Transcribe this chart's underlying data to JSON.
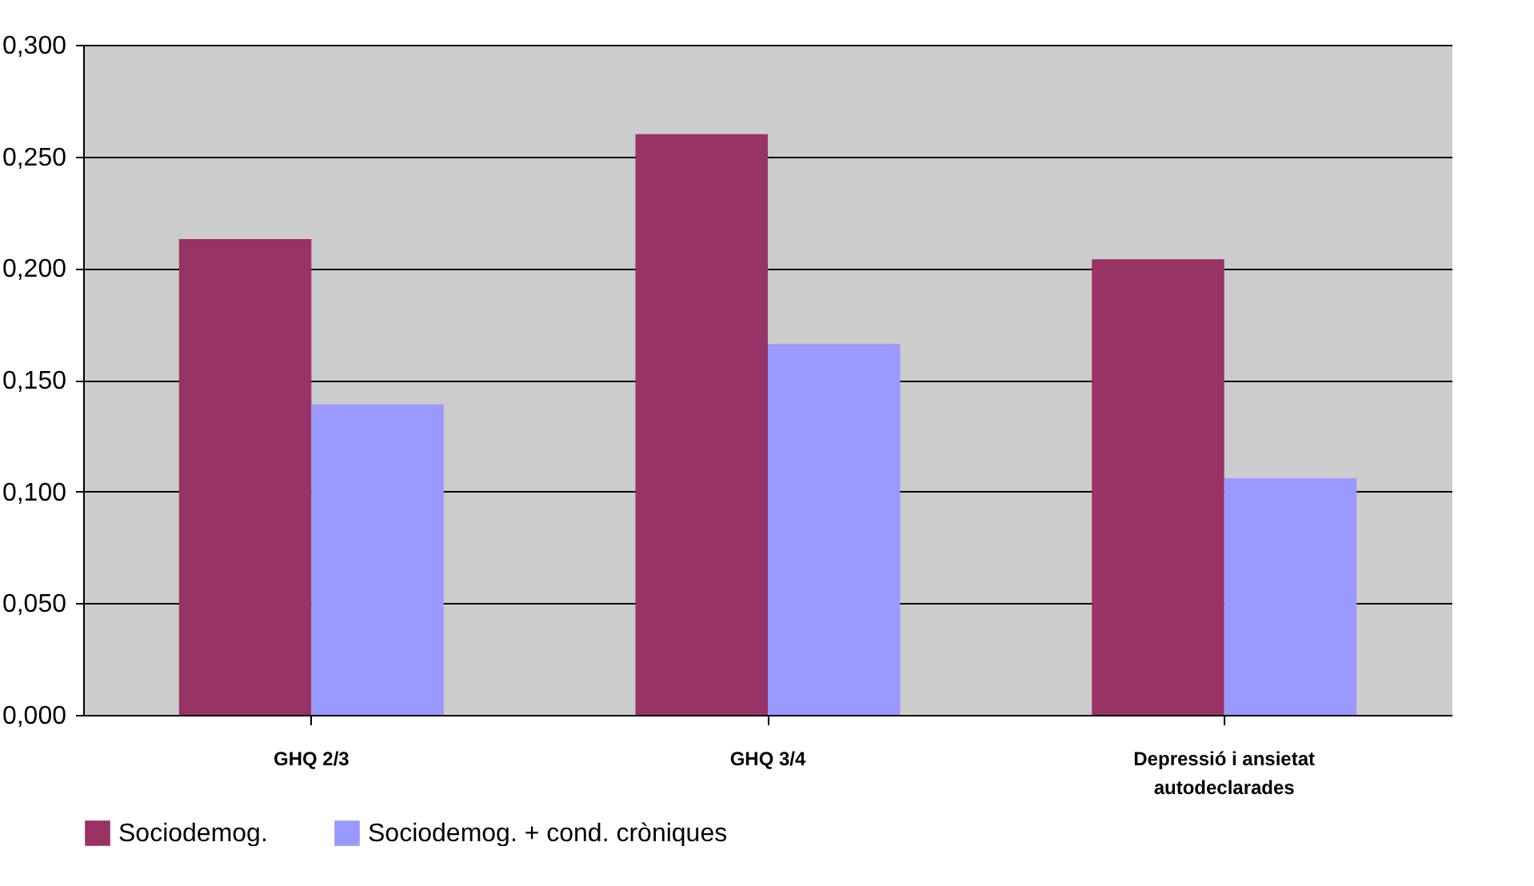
{
  "chart_data": {
    "type": "bar",
    "categories": [
      "GHQ 2/3",
      "GHQ 3/4",
      "Depressió i ansietat autodeclarades"
    ],
    "series": [
      {
        "name": "Sociodemog.",
        "color": "#993366",
        "values": [
          0.213,
          0.26,
          0.204
        ]
      },
      {
        "name": "Sociodemog. + cond. cròniques",
        "color": "#9999ff",
        "values": [
          0.139,
          0.166,
          0.106
        ]
      }
    ],
    "ylim": [
      0,
      0.3
    ],
    "yticks": [
      {
        "value": 0,
        "label": "0,000"
      },
      {
        "value": 0.05,
        "label": "0,050"
      },
      {
        "value": 0.1,
        "label": "0,100"
      },
      {
        "value": 0.15,
        "label": "0,150"
      },
      {
        "value": 0.2,
        "label": "0,200"
      },
      {
        "value": 0.25,
        "label": "0,250"
      },
      {
        "value": 0.3,
        "label": "0,300"
      }
    ],
    "grid": "y",
    "legend": "bottom"
  }
}
